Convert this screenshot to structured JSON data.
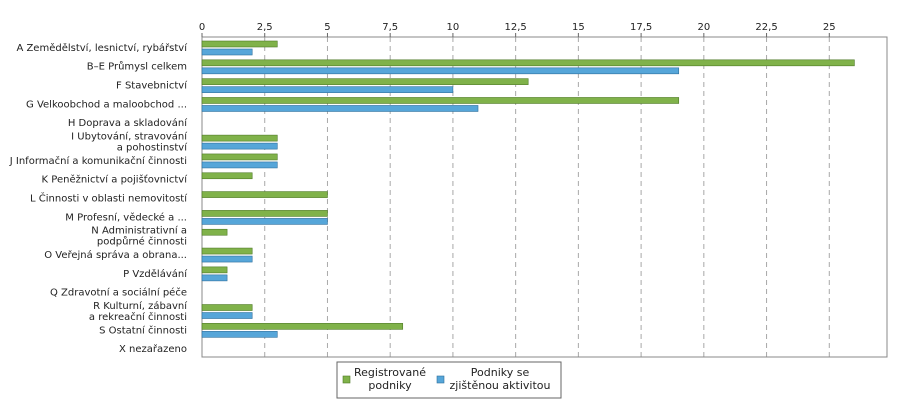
{
  "chart_data": {
    "type": "bar",
    "orientation": "horizontal",
    "categories": [
      [
        "A Zemědělství, lesnictví, rybářství"
      ],
      [
        "B–E Průmysl celkem"
      ],
      [
        "F Stavebnictví"
      ],
      [
        "G Velkoobchod a maloobchod ..."
      ],
      [
        "H Doprava a skladování"
      ],
      [
        "I Ubytování, stravování",
        "a pohostinství"
      ],
      [
        "J Informační a komunikační činnosti"
      ],
      [
        "K Peněžnictví a pojišťovnictví"
      ],
      [
        "L Činnosti v oblasti nemovitostí"
      ],
      [
        "M Profesní, vědecké a ..."
      ],
      [
        "N Administrativní a",
        "podpůrné činnosti"
      ],
      [
        "O Veřejná správa a obrana..."
      ],
      [
        "P Vzdělávání"
      ],
      [
        "Q  Zdravotní a sociální péče"
      ],
      [
        "R Kulturní, zábavní",
        "a rekreační činnosti"
      ],
      [
        "S Ostatní činnosti"
      ],
      [
        "X nezařazeno"
      ]
    ],
    "series": [
      {
        "name": "Registrované podniky",
        "legend_lines": [
          "Registrované",
          "podniky"
        ],
        "color": "#80b24a",
        "stroke": "#4e7a26",
        "values": [
          3,
          26,
          13,
          19,
          0,
          3,
          3,
          2,
          5,
          5,
          1,
          2,
          1,
          0,
          2,
          8,
          0
        ]
      },
      {
        "name": "Podniky se zjištěnou aktivitou",
        "legend_lines": [
          "Podniky se",
          "zjištěnou aktivitou"
        ],
        "color": "#56a6d9",
        "stroke": "#2f6f9c",
        "values": [
          2,
          19,
          10,
          11,
          0,
          3,
          3,
          0,
          0,
          5,
          0,
          2,
          1,
          0,
          2,
          3,
          0
        ]
      }
    ],
    "xlim": [
      0,
      27.3
    ],
    "xticks": [
      "0",
      "2,5",
      "5",
      "7,5",
      "10",
      "12,5",
      "15",
      "17,5",
      "20",
      "22,5",
      "25"
    ],
    "xtick_values": [
      0,
      2.5,
      5,
      7.5,
      10,
      12.5,
      15,
      17.5,
      20,
      22.5,
      25
    ],
    "grid": "vertical dashed",
    "legend": "bottom-center",
    "title": "",
    "xlabel": "",
    "ylabel": ""
  }
}
